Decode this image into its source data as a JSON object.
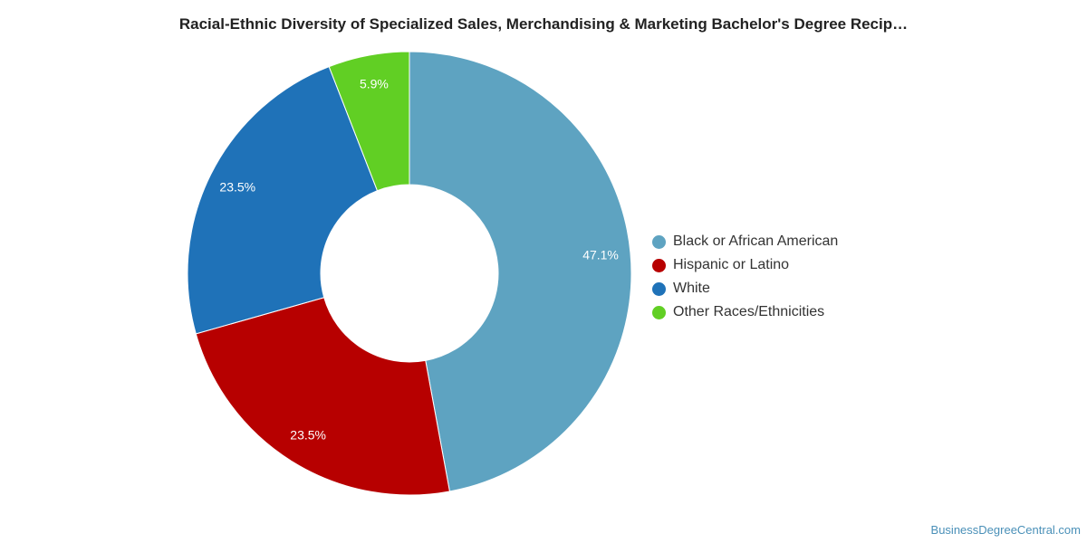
{
  "chart_data": {
    "type": "pie",
    "style": "donut",
    "title": "Racial-Ethnic Diversity of Specialized Sales, Merchandising & Marketing Bachelor's Degree Recip…",
    "categories": [
      "Black or African American",
      "Hispanic or Latino",
      "White",
      "Other Races/Ethnicities"
    ],
    "values": [
      47.1,
      23.5,
      23.5,
      5.9
    ],
    "labels": [
      "47.1%",
      "23.5%",
      "23.5%",
      "5.9%"
    ],
    "colors": [
      "#5ea3c1",
      "#b70000",
      "#1f72b8",
      "#61cf24"
    ],
    "legend_position": "right"
  },
  "footer": {
    "source": "BusinessDegreeCentral.com"
  }
}
